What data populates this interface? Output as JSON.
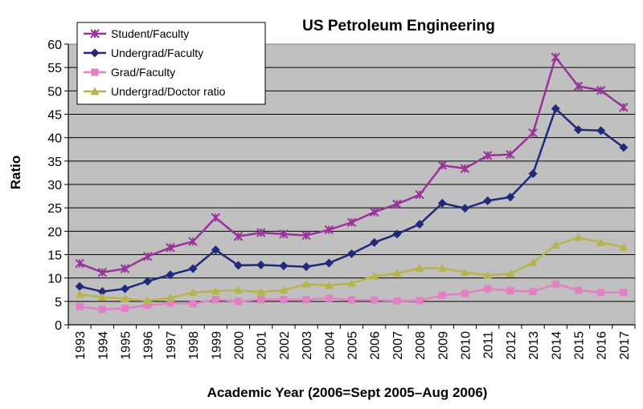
{
  "chart_data": {
    "type": "line",
    "title": "US Petroleum Engineering",
    "xlabel": "Academic Year (2006=Sept 2005–Aug 2006)",
    "ylabel": "Ratio",
    "ylim": [
      0,
      60
    ],
    "yticks": [
      0,
      5,
      10,
      15,
      20,
      25,
      30,
      35,
      40,
      45,
      50,
      55,
      60
    ],
    "grid": "horizontal",
    "legend_position": "top-left",
    "plot_background": "#c0c0c0",
    "categories": [
      "1993",
      "1994",
      "1995",
      "1996",
      "1997",
      "1998",
      "1999",
      "2000",
      "2001",
      "2002",
      "2003",
      "2004",
      "2005",
      "2006",
      "2007",
      "2008",
      "2009",
      "2010",
      "2011",
      "2012",
      "2013",
      "2014",
      "2015",
      "2016",
      "2017"
    ],
    "series": [
      {
        "name": "Student/Faculty",
        "color": "#993399",
        "marker": "star",
        "values": [
          13.1,
          11.2,
          12.0,
          14.6,
          16.5,
          17.8,
          22.9,
          18.9,
          19.7,
          19.4,
          19.1,
          20.3,
          21.9,
          24.1,
          25.8,
          27.8,
          34.1,
          33.4,
          36.2,
          36.4,
          41.0,
          57.2,
          51.0,
          50.1,
          46.5
        ]
      },
      {
        "name": "Undergrad/Faculty",
        "color": "#1f2a7a",
        "marker": "diamond",
        "values": [
          8.2,
          7.1,
          7.7,
          9.3,
          10.7,
          12.0,
          16.0,
          12.7,
          12.8,
          12.6,
          12.4,
          13.2,
          15.2,
          17.6,
          19.4,
          21.5,
          26.0,
          24.9,
          26.5,
          27.3,
          32.3,
          46.2,
          41.7,
          41.5,
          37.9
        ]
      },
      {
        "name": "Grad/Faculty",
        "color": "#e37fc2",
        "marker": "square",
        "values": [
          3.9,
          3.3,
          3.5,
          4.2,
          4.6,
          4.5,
          5.4,
          5.0,
          5.4,
          5.4,
          5.4,
          5.7,
          5.3,
          5.3,
          5.1,
          5.2,
          6.3,
          6.7,
          7.7,
          7.3,
          7.1,
          8.7,
          7.4,
          6.9,
          6.9
        ]
      },
      {
        "name": "Undergrad/Doctor ratio",
        "color": "#b7b54a",
        "marker": "triangle",
        "values": [
          6.5,
          5.9,
          5.6,
          5.1,
          5.8,
          6.9,
          7.2,
          7.4,
          7.0,
          7.4,
          8.7,
          8.4,
          8.9,
          10.4,
          11.0,
          12.1,
          12.1,
          11.2,
          10.6,
          10.9,
          13.3,
          17.0,
          18.7,
          17.6,
          16.6
        ]
      }
    ]
  }
}
